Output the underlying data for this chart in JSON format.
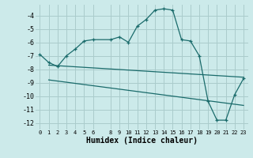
{
  "xlabel": "Humidex (Indice chaleur)",
  "bg_color": "#cceaea",
  "grid_color": "#aacccc",
  "line_color": "#1a6b6b",
  "xlim": [
    -0.5,
    23.5
  ],
  "ylim": [
    -12.5,
    -3.2
  ],
  "yticks": [
    -12,
    -11,
    -10,
    -9,
    -8,
    -7,
    -6,
    -5,
    -4
  ],
  "xticks": [
    0,
    1,
    2,
    3,
    4,
    5,
    6,
    8,
    9,
    10,
    11,
    12,
    13,
    14,
    15,
    16,
    17,
    18,
    19,
    20,
    21,
    22,
    23
  ],
  "line1_x": [
    0,
    1,
    2,
    3,
    4,
    5,
    6,
    8,
    9,
    10,
    11,
    12,
    13,
    14,
    15,
    16,
    17,
    18,
    19,
    20,
    21,
    22,
    23
  ],
  "line1_y": [
    -6.9,
    -7.5,
    -7.8,
    -7.0,
    -6.5,
    -5.9,
    -5.8,
    -5.8,
    -5.6,
    -6.0,
    -4.8,
    -4.3,
    -3.6,
    -3.5,
    -3.6,
    -5.8,
    -5.9,
    -7.0,
    -10.4,
    -11.8,
    -11.8,
    -9.9,
    -8.7
  ],
  "line2_x": [
    1,
    23
  ],
  "line2_y": [
    -7.7,
    -8.6
  ],
  "line3_x": [
    1,
    23
  ],
  "line3_y": [
    -8.8,
    -10.7
  ]
}
